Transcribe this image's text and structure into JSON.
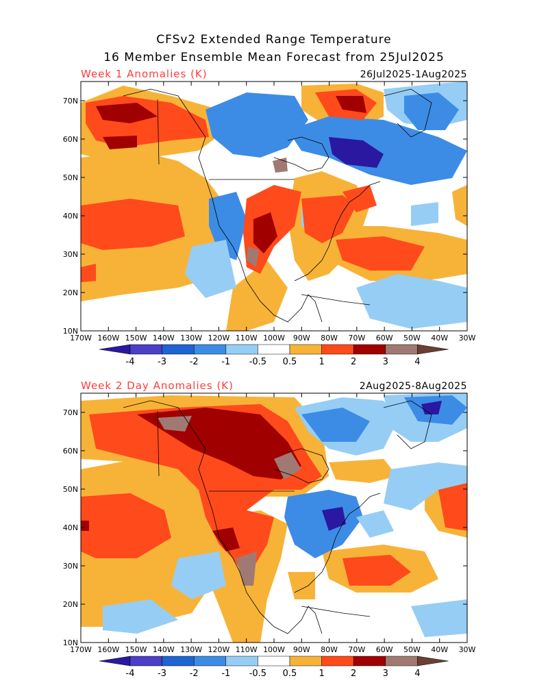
{
  "header": {
    "title_line1": "CFSv2 Extended Range Temperature",
    "title_line2": "16 Member Ensemble Mean Forecast from 25Jul2025"
  },
  "panels": [
    {
      "label": "Week 1 Anomalies (K)",
      "dates": "26Jul2025-1Aug2025"
    },
    {
      "label": "Week 2 Day Anomalies (K)",
      "dates": "2Aug2025-8Aug2025"
    }
  ],
  "axes": {
    "lat_labels": [
      "70N",
      "60N",
      "50N",
      "40N",
      "30N",
      "20N",
      "10N"
    ],
    "lon_labels": [
      "170W",
      "160W",
      "150W",
      "140W",
      "130W",
      "120W",
      "110W",
      "100W",
      "90W",
      "80W",
      "70W",
      "60W",
      "50W",
      "40W",
      "30W"
    ]
  },
  "colorbar": {
    "labels": [
      "-4",
      "-3",
      "-2",
      "-1",
      "-0.5",
      "0.5",
      "1",
      "2",
      "3",
      "4"
    ],
    "colors": [
      "#2a18a0",
      "#4a3fc6",
      "#1e64d2",
      "#3c8ce6",
      "#96cdf5",
      "#ffffff",
      "#f7b338",
      "#ff4a1c",
      "#a00000",
      "#a07a72",
      "#6b3f33"
    ]
  },
  "colors": {
    "ocean": "#ffffff",
    "outline": "#000000"
  }
}
